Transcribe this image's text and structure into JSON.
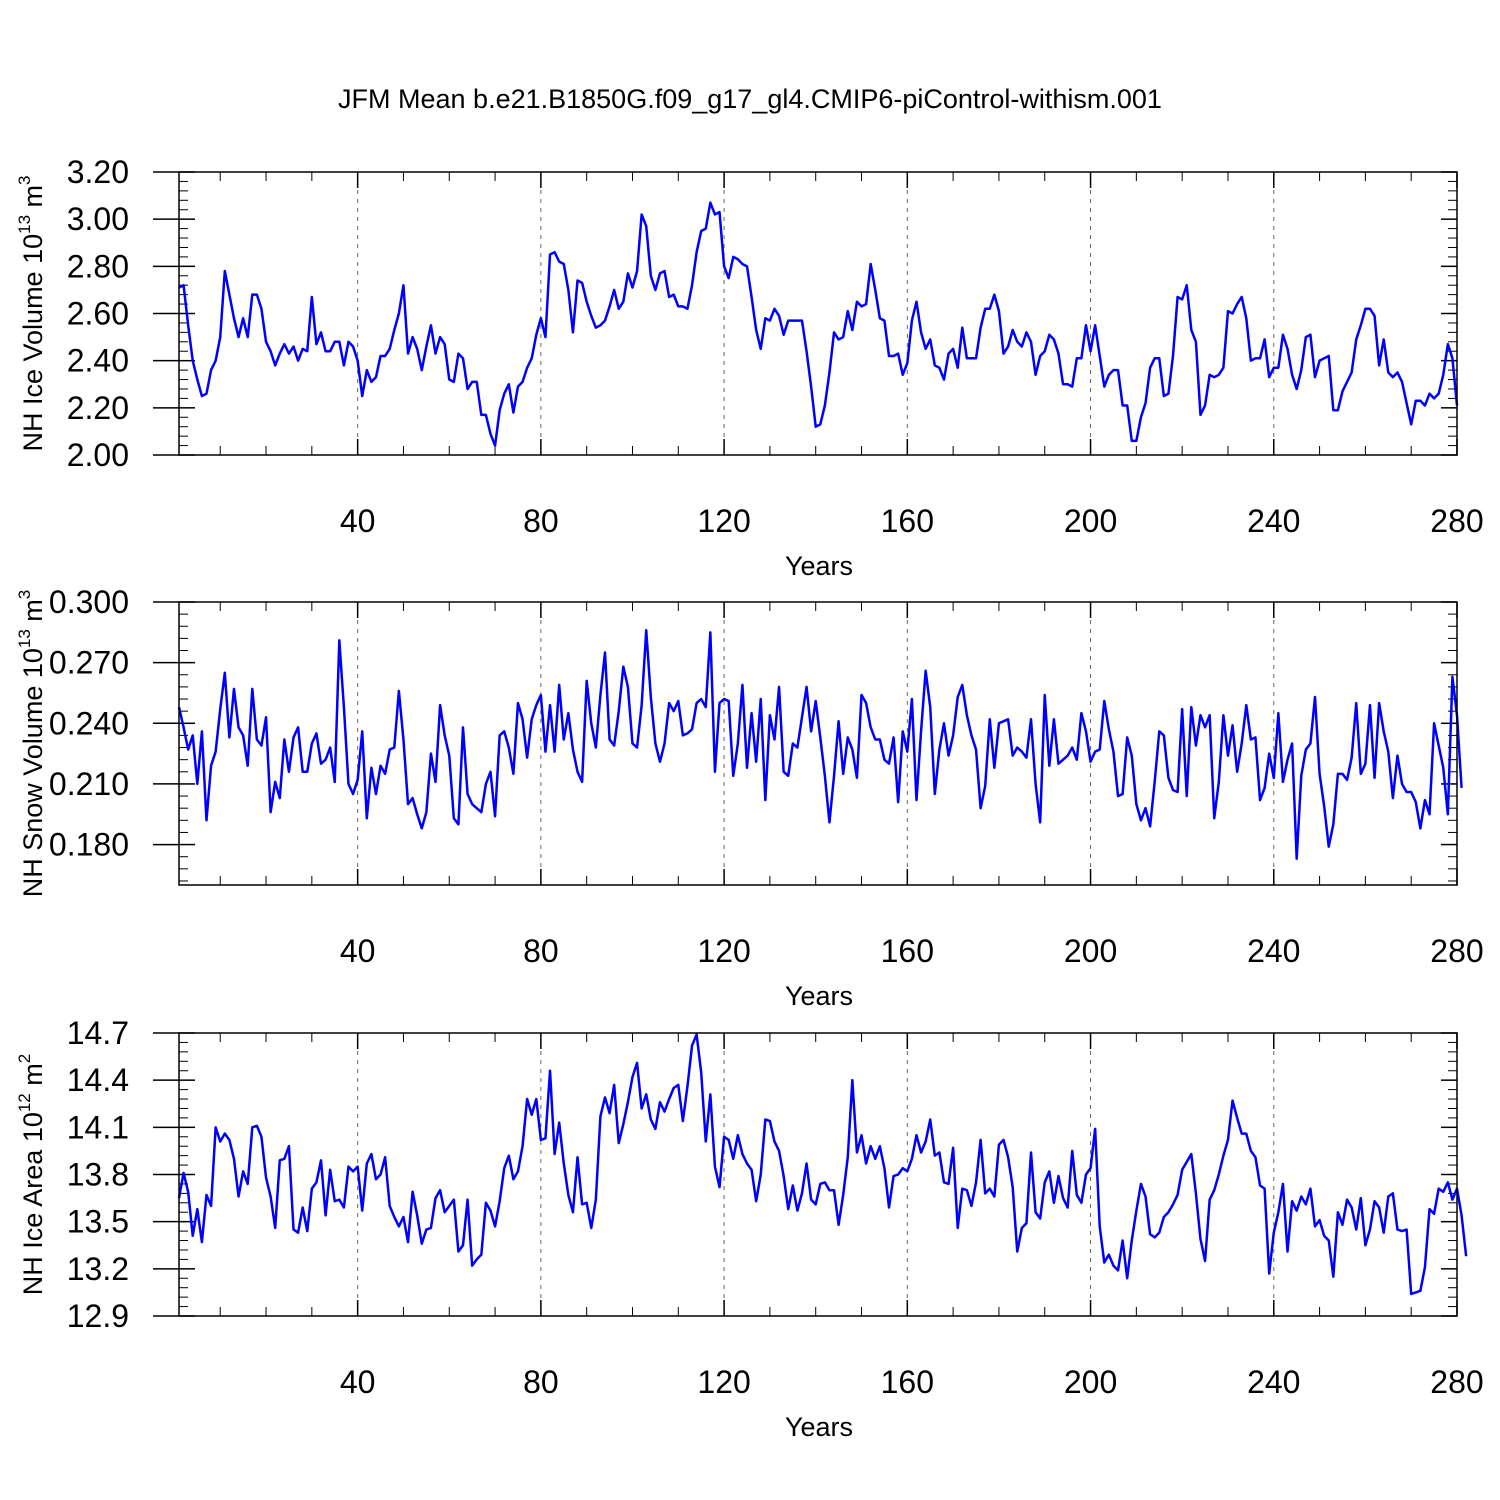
{
  "title": "JFM Mean b.e21.B1850G.f09_g17_gl4.CMIP6-piControl-withism.001",
  "line_color": "#0000ff",
  "chart_data": [
    {
      "type": "line",
      "title": "JFM Mean b.e21.B1850G.f09_g17_gl4.CMIP6-piControl-withism.001",
      "xlabel": "Years",
      "ylabel": "NH Ice Volume 10¹³ m³",
      "ylabel_parts": {
        "main": "NH Ice Volume 10",
        "exp": "13",
        "mid": " m",
        "exp2": "3"
      },
      "xlim": [
        1,
        280
      ],
      "ylim": [
        2.0,
        3.2
      ],
      "xticks": [
        40,
        80,
        120,
        160,
        200,
        240,
        280
      ],
      "yticks": [
        2.0,
        2.2,
        2.4,
        2.6,
        2.8,
        3.0,
        3.2
      ],
      "ytick_labels": [
        "2.00",
        "2.20",
        "2.40",
        "2.60",
        "2.80",
        "3.00",
        "3.20"
      ],
      "grid": "vertical dashed at major x ticks",
      "series": [
        {
          "color": "#0000ff",
          "x_start": 1,
          "values": [
            2.71,
            2.72,
            2.55,
            2.4,
            2.32,
            2.25,
            2.26,
            2.36,
            2.4,
            2.5,
            2.78,
            2.68,
            2.58,
            2.5,
            2.58,
            2.5,
            2.68,
            2.68,
            2.62,
            2.48,
            2.44,
            2.38,
            2.43,
            2.47,
            2.43,
            2.46,
            2.4,
            2.45,
            2.44,
            2.67,
            2.47,
            2.52,
            2.44,
            2.44,
            2.48,
            2.48,
            2.38,
            2.48,
            2.46,
            2.4,
            2.25,
            2.36,
            2.31,
            2.33,
            2.42,
            2.42,
            2.45,
            2.53,
            2.6,
            2.72,
            2.43,
            2.5,
            2.45,
            2.36,
            2.46,
            2.55,
            2.43,
            2.5,
            2.47,
            2.32,
            2.31,
            2.43,
            2.41,
            2.28,
            2.31,
            2.31,
            2.17,
            2.17,
            2.09,
            2.04,
            2.19,
            2.26,
            2.3,
            2.18,
            2.29,
            2.31,
            2.37,
            2.41,
            2.51,
            2.58,
            2.5,
            2.85,
            2.86,
            2.82,
            2.81,
            2.7,
            2.52,
            2.74,
            2.73,
            2.65,
            2.59,
            2.54,
            2.55,
            2.57,
            2.63,
            2.7,
            2.62,
            2.65,
            2.77,
            2.71,
            2.78,
            3.02,
            2.97,
            2.76,
            2.7,
            2.77,
            2.78,
            2.67,
            2.68,
            2.63,
            2.63,
            2.62,
            2.72,
            2.86,
            2.95,
            2.96,
            3.07,
            3.02,
            3.03,
            2.8,
            2.75,
            2.84,
            2.83,
            2.81,
            2.8,
            2.67,
            2.53,
            2.45,
            2.58,
            2.57,
            2.62,
            2.59,
            2.51,
            2.57,
            2.57,
            2.57,
            2.57,
            2.44,
            2.29,
            2.12,
            2.13,
            2.21,
            2.35,
            2.52,
            2.49,
            2.5,
            2.61,
            2.53,
            2.65,
            2.63,
            2.64,
            2.81,
            2.7,
            2.58,
            2.57,
            2.42,
            2.42,
            2.43,
            2.34,
            2.39,
            2.57,
            2.65,
            2.52,
            2.45,
            2.49,
            2.38,
            2.37,
            2.32,
            2.43,
            2.45,
            2.37,
            2.54,
            2.41,
            2.41,
            2.41,
            2.54,
            2.62,
            2.62,
            2.68,
            2.61,
            2.43,
            2.46,
            2.53,
            2.48,
            2.46,
            2.52,
            2.48,
            2.34,
            2.42,
            2.44,
            2.51,
            2.49,
            2.43,
            2.3,
            2.3,
            2.29,
            2.41,
            2.41,
            2.55,
            2.44,
            2.55,
            2.42,
            2.29,
            2.34,
            2.36,
            2.36,
            2.21,
            2.21,
            2.06,
            2.06,
            2.16,
            2.22,
            2.37,
            2.41,
            2.41,
            2.25,
            2.26,
            2.42,
            2.67,
            2.66,
            2.72,
            2.53,
            2.48,
            2.17,
            2.21,
            2.34,
            2.33,
            2.34,
            2.37,
            2.61,
            2.6,
            2.64,
            2.67,
            2.58,
            2.4,
            2.41,
            2.41,
            2.49,
            2.33,
            2.37,
            2.37,
            2.51,
            2.45,
            2.34,
            2.28,
            2.36,
            2.5,
            2.51,
            2.33,
            2.4,
            2.41,
            2.42,
            2.19,
            2.19,
            2.27,
            2.31,
            2.35,
            2.49,
            2.55,
            2.62,
            2.62,
            2.59,
            2.38,
            2.49,
            2.35,
            2.33,
            2.35,
            2.31,
            2.22,
            2.13,
            2.23,
            2.23,
            2.21,
            2.26,
            2.24,
            2.26,
            2.34,
            2.47,
            2.41,
            2.21
          ]
        }
      ]
    },
    {
      "type": "line",
      "xlabel": "Years",
      "ylabel": "NH Snow Volume 10¹³ m³",
      "ylabel_parts": {
        "main": "NH Snow Volume 10",
        "exp": "13",
        "mid": " m",
        "exp2": "3"
      },
      "xlim": [
        1,
        280
      ],
      "ylim": [
        0.16,
        0.3
      ],
      "xticks": [
        40,
        80,
        120,
        160,
        200,
        240,
        280
      ],
      "yticks": [
        0.18,
        0.21,
        0.24,
        0.27,
        0.3
      ],
      "ytick_labels": [
        "0.180",
        "0.210",
        "0.240",
        "0.270",
        "0.300"
      ],
      "grid": "vertical dashed at major x ticks",
      "series": [
        {
          "color": "#0000ff",
          "x_start": 1,
          "values": [
            0.248,
            0.238,
            0.227,
            0.234,
            0.21,
            0.236,
            0.192,
            0.219,
            0.226,
            0.247,
            0.265,
            0.233,
            0.257,
            0.238,
            0.234,
            0.219,
            0.257,
            0.232,
            0.229,
            0.243,
            0.196,
            0.211,
            0.203,
            0.232,
            0.216,
            0.233,
            0.238,
            0.216,
            0.216,
            0.23,
            0.235,
            0.22,
            0.222,
            0.228,
            0.211,
            0.281,
            0.248,
            0.21,
            0.205,
            0.212,
            0.236,
            0.193,
            0.218,
            0.205,
            0.219,
            0.215,
            0.227,
            0.228,
            0.256,
            0.232,
            0.2,
            0.203,
            0.195,
            0.188,
            0.196,
            0.225,
            0.211,
            0.249,
            0.234,
            0.224,
            0.193,
            0.19,
            0.238,
            0.205,
            0.2,
            0.198,
            0.196,
            0.21,
            0.216,
            0.194,
            0.234,
            0.236,
            0.228,
            0.215,
            0.25,
            0.242,
            0.223,
            0.242,
            0.249,
            0.254,
            0.226,
            0.249,
            0.226,
            0.259,
            0.232,
            0.245,
            0.227,
            0.216,
            0.211,
            0.261,
            0.24,
            0.228,
            0.254,
            0.275,
            0.232,
            0.229,
            0.246,
            0.268,
            0.258,
            0.23,
            0.228,
            0.249,
            0.286,
            0.253,
            0.23,
            0.221,
            0.23,
            0.25,
            0.246,
            0.251,
            0.234,
            0.235,
            0.237,
            0.25,
            0.252,
            0.248,
            0.285,
            0.216,
            0.25,
            0.252,
            0.251,
            0.214,
            0.23,
            0.259,
            0.218,
            0.245,
            0.221,
            0.252,
            0.202,
            0.244,
            0.232,
            0.258,
            0.216,
            0.214,
            0.23,
            0.228,
            0.243,
            0.258,
            0.236,
            0.251,
            0.233,
            0.214,
            0.191,
            0.214,
            0.241,
            0.215,
            0.233,
            0.227,
            0.213,
            0.254,
            0.25,
            0.238,
            0.232,
            0.232,
            0.222,
            0.22,
            0.233,
            0.201,
            0.236,
            0.226,
            0.252,
            0.202,
            0.236,
            0.266,
            0.248,
            0.205,
            0.227,
            0.24,
            0.224,
            0.234,
            0.253,
            0.259,
            0.244,
            0.234,
            0.227,
            0.198,
            0.209,
            0.242,
            0.218,
            0.24,
            0.241,
            0.242,
            0.224,
            0.228,
            0.226,
            0.223,
            0.242,
            0.21,
            0.191,
            0.254,
            0.219,
            0.242,
            0.22,
            0.222,
            0.224,
            0.228,
            0.222,
            0.245,
            0.236,
            0.221,
            0.226,
            0.227,
            0.251,
            0.237,
            0.226,
            0.204,
            0.205,
            0.233,
            0.224,
            0.2,
            0.192,
            0.198,
            0.189,
            0.211,
            0.236,
            0.234,
            0.213,
            0.207,
            0.206,
            0.247,
            0.204,
            0.248,
            0.229,
            0.244,
            0.238,
            0.244,
            0.193,
            0.211,
            0.244,
            0.224,
            0.239,
            0.216,
            0.23,
            0.249,
            0.232,
            0.233,
            0.202,
            0.208,
            0.225,
            0.213,
            0.245,
            0.211,
            0.222,
            0.23,
            0.173,
            0.214,
            0.227,
            0.23,
            0.253,
            0.215,
            0.199,
            0.179,
            0.19,
            0.215,
            0.215,
            0.212,
            0.223,
            0.25,
            0.215,
            0.22,
            0.249,
            0.213,
            0.25,
            0.236,
            0.226,
            0.203,
            0.224,
            0.21,
            0.206,
            0.206,
            0.201,
            0.188,
            0.202,
            0.195,
            0.24,
            0.229,
            0.218,
            0.195,
            0.263,
            0.244,
            0.208
          ]
        }
      ]
    },
    {
      "type": "line",
      "xlabel": "Years",
      "ylabel": "NH Ice Area 10¹² m²",
      "ylabel_parts": {
        "main": "NH Ice Area 10",
        "exp": "12",
        "mid": " m",
        "exp2": "2"
      },
      "xlim": [
        1,
        280
      ],
      "ylim": [
        12.9,
        14.7
      ],
      "xticks": [
        40,
        80,
        120,
        160,
        200,
        240,
        280
      ],
      "yticks": [
        12.9,
        13.2,
        13.5,
        13.8,
        14.1,
        14.4,
        14.7
      ],
      "ytick_labels": [
        "12.9",
        "13.2",
        "13.5",
        "13.8",
        "14.1",
        "14.4",
        "14.7"
      ],
      "grid": "vertical dashed at major x ticks",
      "series": [
        {
          "color": "#0000ff",
          "x_start": 1,
          "values": [
            13.65,
            13.81,
            13.69,
            13.41,
            13.58,
            13.37,
            13.67,
            13.6,
            14.1,
            14.01,
            14.06,
            14.02,
            13.9,
            13.66,
            13.82,
            13.74,
            14.1,
            14.11,
            14.04,
            13.78,
            13.66,
            13.46,
            13.89,
            13.9,
            13.98,
            13.45,
            13.43,
            13.59,
            13.44,
            13.71,
            13.75,
            13.89,
            13.54,
            13.83,
            13.63,
            13.64,
            13.59,
            13.85,
            13.82,
            13.85,
            13.57,
            13.87,
            13.93,
            13.77,
            13.8,
            13.91,
            13.6,
            13.53,
            13.47,
            13.53,
            13.37,
            13.69,
            13.54,
            13.36,
            13.45,
            13.46,
            13.65,
            13.7,
            13.56,
            13.6,
            13.64,
            13.31,
            13.35,
            13.64,
            13.22,
            13.26,
            13.29,
            13.62,
            13.57,
            13.47,
            13.63,
            13.84,
            13.92,
            13.77,
            13.82,
            13.98,
            14.28,
            14.18,
            14.28,
            14.02,
            14.03,
            14.46,
            13.93,
            14.13,
            13.87,
            13.67,
            13.56,
            13.91,
            13.61,
            13.62,
            13.46,
            13.64,
            14.17,
            14.29,
            14.19,
            14.37,
            14.0,
            14.12,
            14.26,
            14.42,
            14.51,
            14.22,
            14.31,
            14.15,
            14.09,
            14.26,
            14.2,
            14.28,
            14.35,
            14.37,
            14.14,
            14.36,
            14.62,
            14.69,
            14.45,
            14.01,
            14.31,
            13.85,
            13.72,
            14.04,
            14.02,
            13.9,
            14.05,
            13.93,
            13.87,
            13.83,
            13.63,
            13.8,
            14.15,
            14.14,
            14.01,
            13.95,
            13.79,
            13.58,
            13.73,
            13.57,
            13.68,
            13.87,
            13.64,
            13.61,
            13.74,
            13.75,
            13.7,
            13.7,
            13.48,
            13.67,
            13.91,
            14.4,
            13.94,
            14.05,
            13.87,
            13.98,
            13.9,
            13.98,
            13.84,
            13.59,
            13.79,
            13.8,
            13.84,
            13.82,
            13.9,
            14.05,
            13.94,
            14.01,
            14.15,
            13.92,
            13.94,
            13.75,
            13.74,
            13.97,
            13.46,
            13.71,
            13.7,
            13.6,
            13.75,
            14.02,
            13.68,
            13.71,
            13.66,
            13.99,
            14.02,
            13.91,
            13.72,
            13.31,
            13.46,
            13.49,
            13.94,
            13.56,
            13.52,
            13.75,
            13.82,
            13.62,
            13.79,
            13.65,
            13.59,
            13.95,
            13.67,
            13.62,
            13.8,
            13.84,
            14.09,
            13.47,
            13.24,
            13.29,
            13.22,
            13.19,
            13.38,
            13.14,
            13.38,
            13.57,
            13.74,
            13.66,
            13.42,
            13.4,
            13.43,
            13.53,
            13.56,
            13.61,
            13.67,
            13.83,
            13.88,
            13.93,
            13.68,
            13.39,
            13.25,
            13.64,
            13.7,
            13.8,
            13.92,
            14.02,
            14.27,
            14.16,
            14.06,
            14.06,
            13.95,
            13.91,
            13.73,
            13.71,
            13.17,
            13.43,
            13.56,
            13.74,
            13.31,
            13.63,
            13.57,
            13.66,
            13.61,
            13.71,
            13.47,
            13.51,
            13.41,
            13.38,
            13.15,
            13.56,
            13.48,
            13.64,
            13.59,
            13.45,
            13.65,
            13.35,
            13.45,
            13.63,
            13.59,
            13.43,
            13.66,
            13.68,
            13.45,
            13.44,
            13.45,
            13.04,
            13.05,
            13.06,
            13.21,
            13.58,
            13.55,
            13.71,
            13.69,
            13.75,
            13.64,
            13.71,
            13.54,
            13.28
          ]
        }
      ]
    }
  ]
}
